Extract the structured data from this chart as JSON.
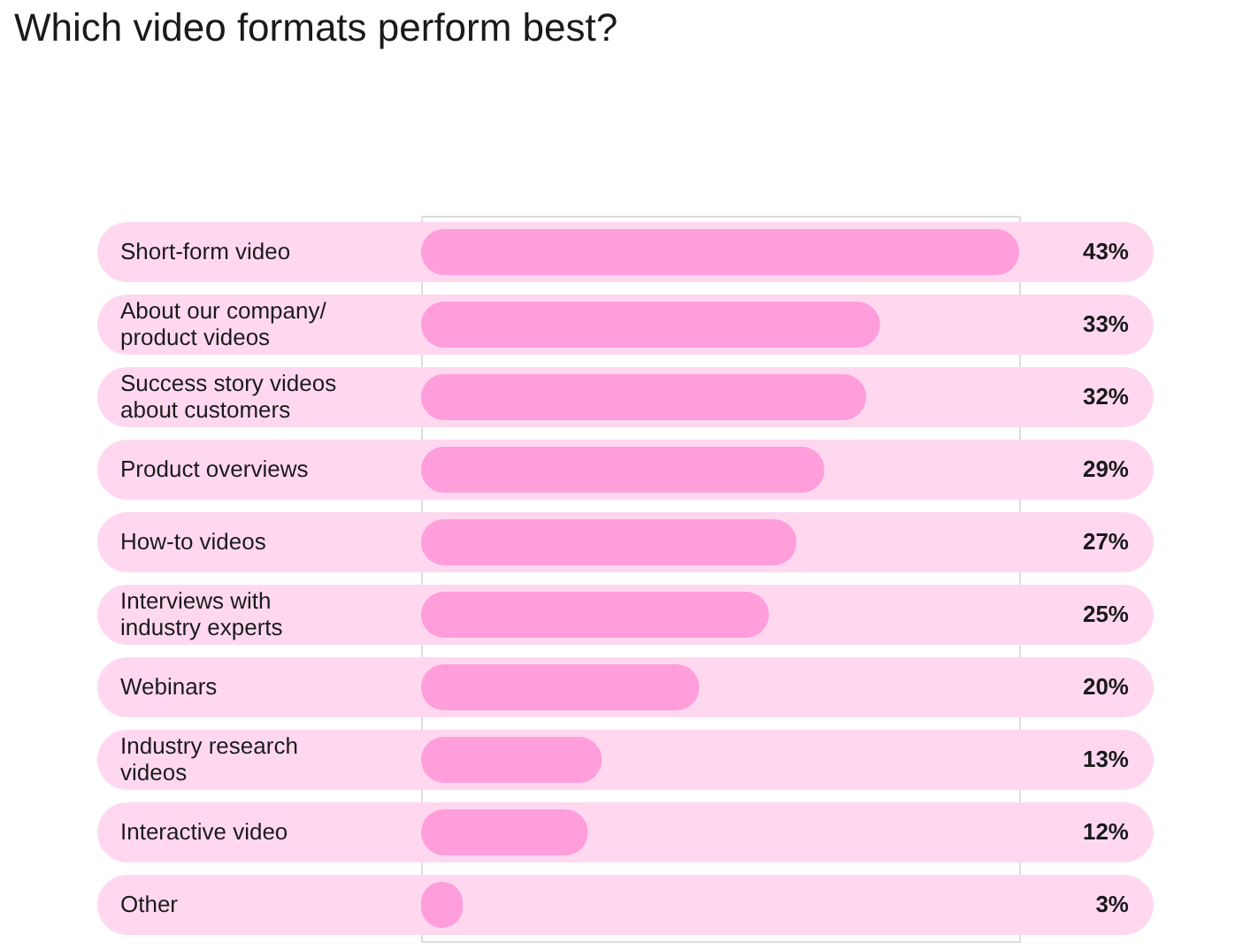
{
  "chart_data": {
    "type": "bar",
    "orientation": "horizontal",
    "title": "Which video formats perform best?",
    "categories": [
      "Short-form video",
      "About our company/ product videos",
      "Success story videos about customers",
      "Product overviews",
      "How-to videos",
      "Interviews with industry experts",
      "Webinars",
      "Industry research videos",
      "Interactive video",
      "Other"
    ],
    "values": [
      43,
      33,
      32,
      29,
      27,
      25,
      20,
      13,
      12,
      3
    ],
    "value_labels": [
      "43%",
      "33%",
      "32%",
      "29%",
      "27%",
      "25%",
      "20%",
      "13%",
      "12%",
      "3%"
    ],
    "color": "#ff9edb"
  }
}
